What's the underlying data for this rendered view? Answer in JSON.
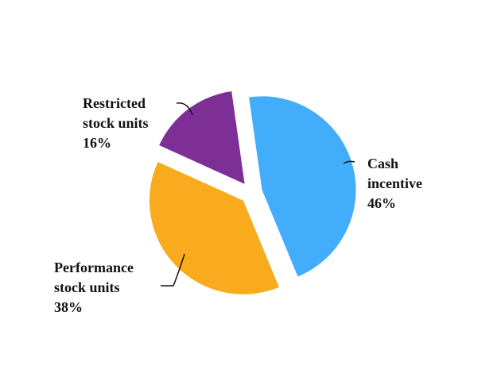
{
  "chart_data": {
    "type": "pie",
    "categories": [
      "Cash incentive",
      "Performance stock units",
      "Restricted stock units"
    ],
    "values": [
      46,
      38,
      16
    ],
    "value_labels": [
      "46%",
      "38%",
      "16%"
    ],
    "colors": [
      "#42adfb",
      "#f9ab1d",
      "#7e2f96"
    ]
  }
}
